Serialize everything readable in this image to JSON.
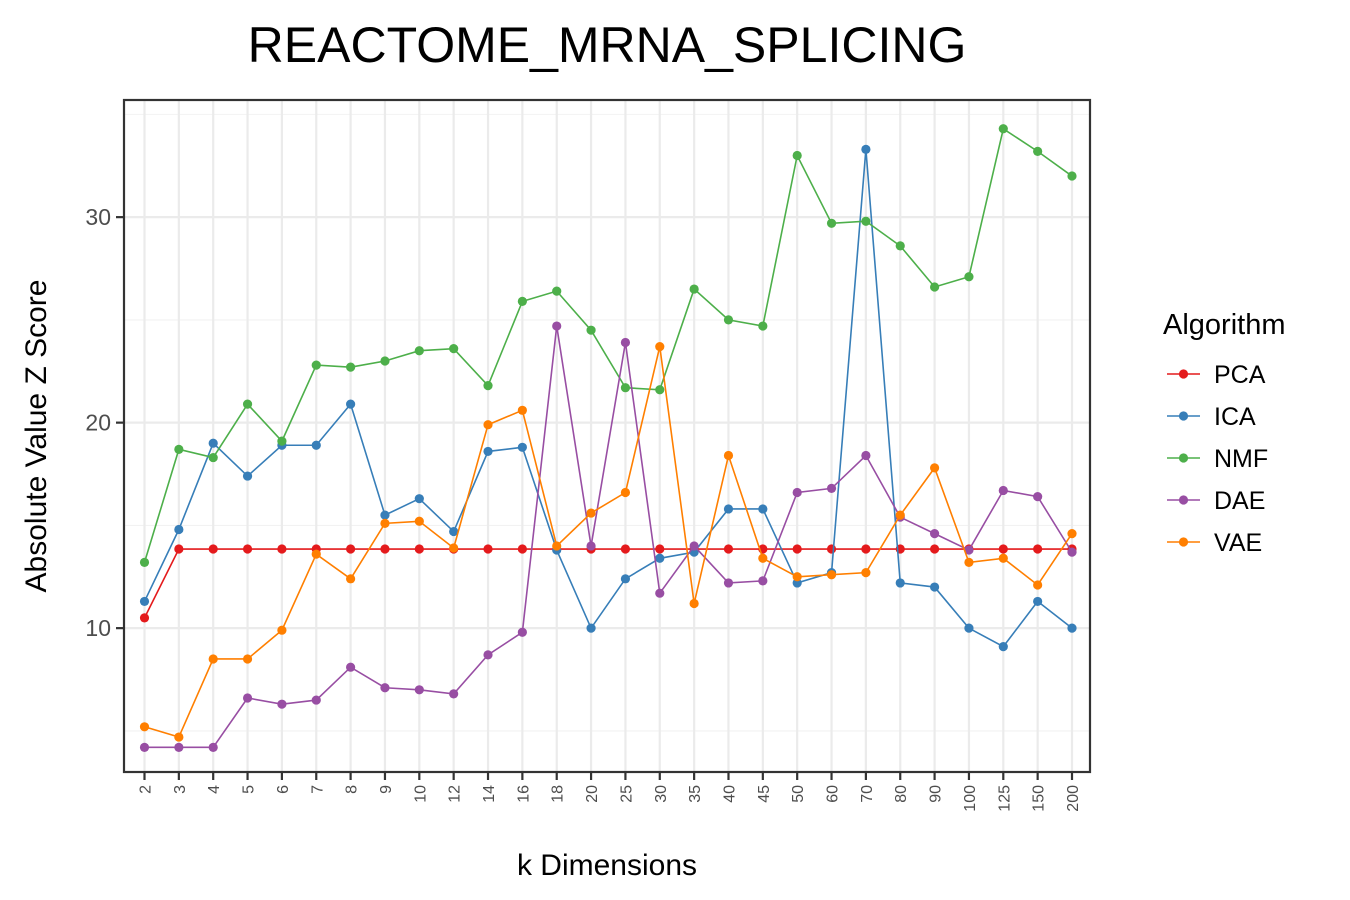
{
  "chart_data": {
    "type": "line",
    "title": "REACTOME_MRNA_SPLICING",
    "xlabel": "k Dimensions",
    "ylabel": "Absolute Value Z Score",
    "categories": [
      "2",
      "3",
      "4",
      "5",
      "6",
      "7",
      "8",
      "9",
      "10",
      "12",
      "14",
      "16",
      "18",
      "20",
      "25",
      "30",
      "35",
      "40",
      "45",
      "50",
      "60",
      "70",
      "80",
      "90",
      "100",
      "125",
      "150",
      "200"
    ],
    "ylim": [
      3.0,
      35.7
    ],
    "yticks": [
      10,
      20,
      30
    ],
    "grid": true,
    "legend": {
      "title": "Algorithm",
      "position": "right"
    },
    "series": [
      {
        "name": "PCA",
        "color": "#E41A1C",
        "values": [
          10.5,
          13.85,
          13.85,
          13.85,
          13.85,
          13.85,
          13.85,
          13.85,
          13.85,
          13.85,
          13.85,
          13.85,
          13.85,
          13.85,
          13.85,
          13.85,
          13.85,
          13.85,
          13.85,
          13.85,
          13.85,
          13.85,
          13.85,
          13.85,
          13.85,
          13.85,
          13.85,
          13.85
        ]
      },
      {
        "name": "ICA",
        "color": "#377EB8",
        "values": [
          11.3,
          14.8,
          19.0,
          17.4,
          18.9,
          18.9,
          20.9,
          15.5,
          16.3,
          14.7,
          18.6,
          18.8,
          13.8,
          10.0,
          12.4,
          13.4,
          13.7,
          15.8,
          15.8,
          12.2,
          12.7,
          33.3,
          12.2,
          12.0,
          10.0,
          9.1,
          11.3,
          10.0
        ]
      },
      {
        "name": "NMF",
        "color": "#4DAF4A",
        "values": [
          13.2,
          18.7,
          18.3,
          20.9,
          19.1,
          22.8,
          22.7,
          23.0,
          23.5,
          23.6,
          21.8,
          25.9,
          26.4,
          24.5,
          21.7,
          21.6,
          26.5,
          25.0,
          24.7,
          33.0,
          29.7,
          29.8,
          28.6,
          26.6,
          27.1,
          34.3,
          33.2,
          32.0
        ]
      },
      {
        "name": "DAE",
        "color": "#984EA3",
        "values": [
          4.2,
          4.2,
          4.2,
          6.6,
          6.3,
          6.5,
          8.1,
          7.1,
          7.0,
          6.8,
          8.7,
          9.8,
          24.7,
          14.0,
          23.9,
          11.7,
          14.0,
          12.2,
          12.3,
          16.6,
          16.8,
          18.4,
          15.4,
          14.6,
          13.8,
          16.7,
          16.4,
          13.7
        ]
      },
      {
        "name": "VAE",
        "color": "#FF7F00",
        "values": [
          5.2,
          4.7,
          8.5,
          8.5,
          9.9,
          13.6,
          12.4,
          15.1,
          15.2,
          13.9,
          19.9,
          20.6,
          14.0,
          15.6,
          16.6,
          23.7,
          11.2,
          18.4,
          13.4,
          12.5,
          12.6,
          12.7,
          15.5,
          17.8,
          13.2,
          13.4,
          12.1,
          14.6
        ]
      }
    ]
  }
}
